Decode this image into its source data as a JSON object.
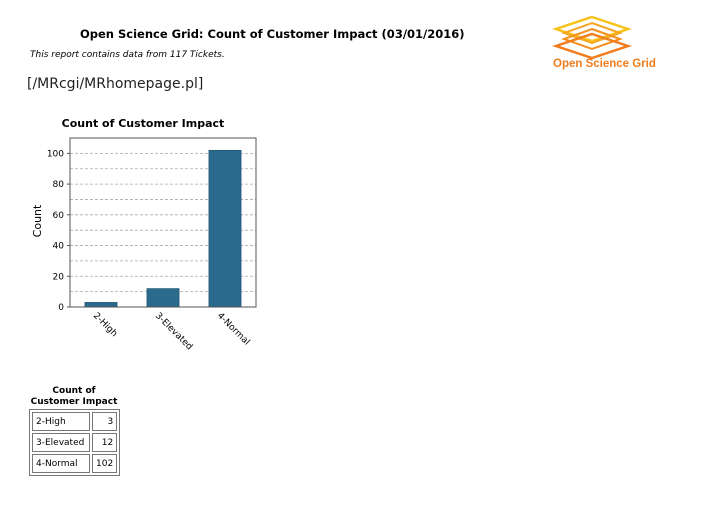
{
  "header": {
    "title": "Open Science Grid: Count of Customer Impact (03/01/2016)",
    "note": "This report contains data from 117 Tickets.",
    "link": "[/MRcgi/MRhomepage.pl]",
    "logo_text": "Open Science Grid"
  },
  "colors": {
    "bar": "#2a6a8c",
    "logo_top": "#f7c21b",
    "logo_bottom": "#f07d1e",
    "grid": "#aaaaaa"
  },
  "chart_data": {
    "type": "bar",
    "title": "Count of Customer Impact",
    "ylabel": "Count",
    "xlabel": "",
    "categories": [
      "2-High",
      "3-Elevated",
      "4-Normal"
    ],
    "values": [
      3,
      12,
      102
    ],
    "ylim": [
      0,
      110
    ],
    "yticks": [
      0,
      20,
      40,
      60,
      80,
      100
    ],
    "grid": true
  },
  "summary": {
    "caption_line1": "Count of",
    "caption_line2": "Customer Impact",
    "rows": [
      {
        "label": "2-High",
        "value": "3"
      },
      {
        "label": "3-Elevated",
        "value": "12"
      },
      {
        "label": "4-Normal",
        "value": "102"
      }
    ]
  }
}
